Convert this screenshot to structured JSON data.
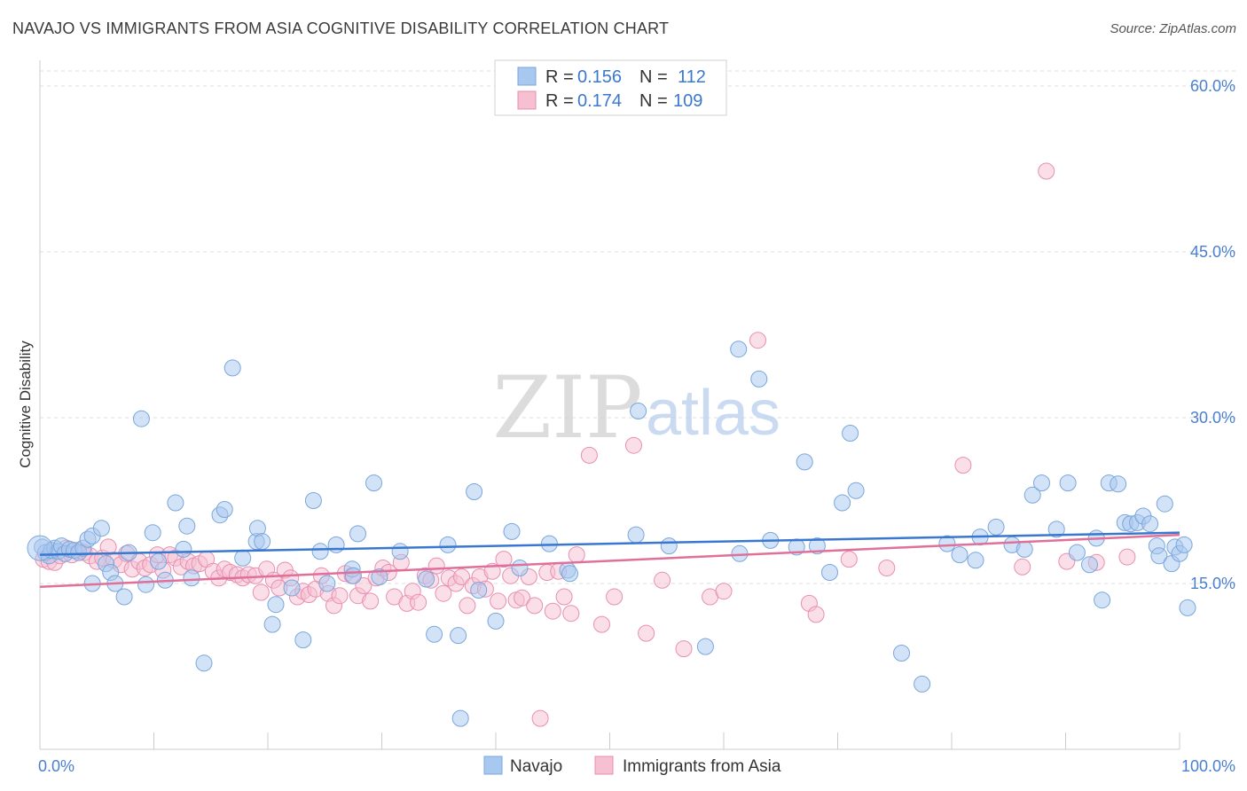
{
  "title": "NAVAJO VS IMMIGRANTS FROM ASIA COGNITIVE DISABILITY CORRELATION CHART",
  "source": "Source: ZipAtlas.com",
  "watermark": {
    "zip": "ZIP",
    "atlas": "atlas"
  },
  "colors": {
    "navajo_fill": "#a8c8f0",
    "navajo_stroke": "#7aa6dc",
    "navajo_line": "#3a78d0",
    "asia_fill": "#f6bfd2",
    "asia_stroke": "#e88fb0",
    "asia_line": "#e0709a",
    "axis_text": "#4a7fd0",
    "grid": "#dddddd"
  },
  "legend": {
    "rows": [
      {
        "r_label": "R =",
        "r_value": "0.156",
        "n_label": "N =",
        "n_value": "112"
      },
      {
        "r_label": "R =",
        "r_value": "0.174",
        "n_label": "N =",
        "n_value": "109"
      }
    ]
  },
  "bottom_legend": {
    "navajo": "Navajo",
    "asia": "Immigrants from Asia"
  },
  "chart_data": {
    "type": "scatter",
    "title": "NAVAJO VS IMMIGRANTS FROM ASIA COGNITIVE DISABILITY CORRELATION CHART",
    "xlabel": "",
    "ylabel": "Cognitive Disability",
    "xlim": [
      0,
      100
    ],
    "ylim": [
      0,
      60
    ],
    "x_tick_labels": [
      "0.0%",
      "100.0%"
    ],
    "y_ticks": [
      15,
      30,
      45,
      60
    ],
    "y_tick_labels": [
      "15.0%",
      "30.0%",
      "45.0%",
      "60.0%"
    ],
    "grid": "horizontal dashed",
    "legend_position": "top-center",
    "series": [
      {
        "name": "Navajo",
        "R": 0.156,
        "N": 112,
        "trend": {
          "x": [
            0,
            100
          ],
          "y": [
            17.6,
            19.6
          ]
        },
        "points": [
          [
            0.2,
            18.3
          ],
          [
            0.5,
            17.8
          ],
          [
            0.8,
            17.5
          ],
          [
            1.0,
            18.0
          ],
          [
            1.3,
            18.2
          ],
          [
            1.6,
            17.9
          ],
          [
            1.9,
            18.4
          ],
          [
            2.2,
            17.7
          ],
          [
            2.6,
            18.1
          ],
          [
            3.0,
            18.0
          ],
          [
            3.4,
            17.8
          ],
          [
            3.8,
            18.2
          ],
          [
            4.2,
            19.0
          ],
          [
            4.6,
            19.3
          ],
          [
            4.6,
            15.0
          ],
          [
            5.4,
            20.0
          ],
          [
            5.8,
            16.8
          ],
          [
            6.2,
            16.0
          ],
          [
            6.6,
            15.0
          ],
          [
            7.4,
            13.8
          ],
          [
            7.8,
            17.8
          ],
          [
            8.9,
            29.9
          ],
          [
            9.3,
            14.9
          ],
          [
            9.9,
            19.6
          ],
          [
            10.4,
            17.0
          ],
          [
            11.0,
            15.3
          ],
          [
            11.9,
            22.3
          ],
          [
            12.6,
            18.1
          ],
          [
            12.9,
            20.2
          ],
          [
            13.3,
            15.5
          ],
          [
            14.4,
            7.8
          ],
          [
            15.8,
            21.2
          ],
          [
            16.2,
            21.7
          ],
          [
            16.9,
            34.5
          ],
          [
            17.8,
            17.3
          ],
          [
            19.0,
            18.8
          ],
          [
            19.1,
            20.0
          ],
          [
            19.5,
            18.8
          ],
          [
            20.4,
            11.3
          ],
          [
            20.7,
            13.1
          ],
          [
            22.1,
            14.6
          ],
          [
            23.1,
            9.9
          ],
          [
            24.0,
            22.5
          ],
          [
            24.6,
            17.9
          ],
          [
            25.2,
            15.0
          ],
          [
            26.0,
            18.5
          ],
          [
            27.4,
            16.3
          ],
          [
            27.5,
            15.7
          ],
          [
            27.9,
            19.5
          ],
          [
            29.3,
            24.1
          ],
          [
            29.8,
            15.6
          ],
          [
            31.6,
            17.9
          ],
          [
            33.9,
            15.4
          ],
          [
            34.6,
            10.4
          ],
          [
            35.8,
            18.5
          ],
          [
            36.7,
            10.3
          ],
          [
            36.9,
            2.8
          ],
          [
            38.1,
            23.3
          ],
          [
            38.5,
            14.4
          ],
          [
            40.0,
            11.6
          ],
          [
            41.4,
            19.7
          ],
          [
            42.1,
            16.4
          ],
          [
            44.7,
            18.6
          ],
          [
            46.3,
            16.2
          ],
          [
            46.5,
            15.9
          ],
          [
            52.3,
            19.4
          ],
          [
            52.5,
            30.6
          ],
          [
            55.2,
            18.4
          ],
          [
            58.4,
            9.3
          ],
          [
            61.3,
            36.2
          ],
          [
            61.4,
            17.7
          ],
          [
            63.1,
            33.5
          ],
          [
            64.1,
            18.9
          ],
          [
            66.4,
            18.3
          ],
          [
            67.1,
            26.0
          ],
          [
            68.2,
            18.4
          ],
          [
            69.3,
            16.0
          ],
          [
            70.4,
            22.3
          ],
          [
            71.1,
            28.6
          ],
          [
            71.6,
            23.4
          ],
          [
            75.6,
            8.7
          ],
          [
            77.4,
            5.9
          ],
          [
            79.6,
            18.6
          ],
          [
            80.7,
            17.6
          ],
          [
            82.1,
            17.1
          ],
          [
            82.5,
            19.2
          ],
          [
            83.9,
            20.1
          ],
          [
            85.3,
            18.5
          ],
          [
            86.4,
            18.1
          ],
          [
            87.1,
            23.0
          ],
          [
            87.9,
            24.1
          ],
          [
            89.2,
            19.9
          ],
          [
            90.2,
            24.1
          ],
          [
            91.0,
            17.8
          ],
          [
            92.1,
            16.7
          ],
          [
            92.7,
            19.1
          ],
          [
            93.2,
            13.5
          ],
          [
            93.8,
            24.1
          ],
          [
            94.6,
            24.0
          ],
          [
            95.2,
            20.5
          ],
          [
            95.7,
            20.4
          ],
          [
            96.3,
            20.5
          ],
          [
            96.8,
            21.1
          ],
          [
            97.4,
            20.4
          ],
          [
            98.0,
            18.4
          ],
          [
            98.2,
            17.5
          ],
          [
            98.7,
            22.2
          ],
          [
            99.3,
            16.8
          ],
          [
            99.6,
            18.3
          ],
          [
            100.0,
            17.7
          ],
          [
            100.4,
            18.5
          ],
          [
            100.7,
            12.8
          ]
        ]
      },
      {
        "name": "Immigrants from Asia",
        "R": 0.174,
        "N": 109,
        "trend": {
          "x": [
            0,
            100
          ],
          "y": [
            14.7,
            19.4
          ]
        },
        "points": [
          [
            0.3,
            17.2
          ],
          [
            0.8,
            17.0
          ],
          [
            1.3,
            16.9
          ],
          [
            1.8,
            17.5
          ],
          [
            2.3,
            18.2
          ],
          [
            2.8,
            17.6
          ],
          [
            3.4,
            18.0
          ],
          [
            3.9,
            17.8
          ],
          [
            4.4,
            17.5
          ],
          [
            5.0,
            17.0
          ],
          [
            5.5,
            17.3
          ],
          [
            6.0,
            18.3
          ],
          [
            6.5,
            17.1
          ],
          [
            7.1,
            16.7
          ],
          [
            7.6,
            17.7
          ],
          [
            8.1,
            16.3
          ],
          [
            8.7,
            17.0
          ],
          [
            9.2,
            16.4
          ],
          [
            9.7,
            16.7
          ],
          [
            10.3,
            17.6
          ],
          [
            10.8,
            16.2
          ],
          [
            11.4,
            17.6
          ],
          [
            11.9,
            17.3
          ],
          [
            12.4,
            16.5
          ],
          [
            13.0,
            17.0
          ],
          [
            13.5,
            16.6
          ],
          [
            14.0,
            16.8
          ],
          [
            14.6,
            17.2
          ],
          [
            15.2,
            16.1
          ],
          [
            15.7,
            15.5
          ],
          [
            16.2,
            16.3
          ],
          [
            16.7,
            16.0
          ],
          [
            17.3,
            15.8
          ],
          [
            17.8,
            15.5
          ],
          [
            18.3,
            15.8
          ],
          [
            18.9,
            15.7
          ],
          [
            19.4,
            14.2
          ],
          [
            19.9,
            16.3
          ],
          [
            20.5,
            15.3
          ],
          [
            21.0,
            14.6
          ],
          [
            21.5,
            16.2
          ],
          [
            22.0,
            15.5
          ],
          [
            22.6,
            13.8
          ],
          [
            23.1,
            14.3
          ],
          [
            23.6,
            14.0
          ],
          [
            24.2,
            14.5
          ],
          [
            24.7,
            15.7
          ],
          [
            25.3,
            14.1
          ],
          [
            25.8,
            13.0
          ],
          [
            26.3,
            13.9
          ],
          [
            26.8,
            15.9
          ],
          [
            27.4,
            15.7
          ],
          [
            27.9,
            13.9
          ],
          [
            28.4,
            14.8
          ],
          [
            29.0,
            13.4
          ],
          [
            29.5,
            15.5
          ],
          [
            30.1,
            16.4
          ],
          [
            30.6,
            16.0
          ],
          [
            31.1,
            13.8
          ],
          [
            31.7,
            16.9
          ],
          [
            32.2,
            13.2
          ],
          [
            32.7,
            14.3
          ],
          [
            33.2,
            13.3
          ],
          [
            33.8,
            15.7
          ],
          [
            34.3,
            15.3
          ],
          [
            34.8,
            16.6
          ],
          [
            35.4,
            14.1
          ],
          [
            35.9,
            15.5
          ],
          [
            36.5,
            15.0
          ],
          [
            37.0,
            15.6
          ],
          [
            37.5,
            13.0
          ],
          [
            38.0,
            14.8
          ],
          [
            38.6,
            15.6
          ],
          [
            39.1,
            14.5
          ],
          [
            39.7,
            16.1
          ],
          [
            40.2,
            13.4
          ],
          [
            40.7,
            17.2
          ],
          [
            41.3,
            15.7
          ],
          [
            41.8,
            13.5
          ],
          [
            42.3,
            13.7
          ],
          [
            42.9,
            15.6
          ],
          [
            43.4,
            13.0
          ],
          [
            43.9,
            2.8
          ],
          [
            44.5,
            16.0
          ],
          [
            45.0,
            12.5
          ],
          [
            45.5,
            16.1
          ],
          [
            46.0,
            13.8
          ],
          [
            46.6,
            12.3
          ],
          [
            47.1,
            17.6
          ],
          [
            48.2,
            26.6
          ],
          [
            49.3,
            11.3
          ],
          [
            50.4,
            13.8
          ],
          [
            52.1,
            27.5
          ],
          [
            53.2,
            10.5
          ],
          [
            54.6,
            15.3
          ],
          [
            56.5,
            9.1
          ],
          [
            58.8,
            13.8
          ],
          [
            60.0,
            14.3
          ],
          [
            63.0,
            37.0
          ],
          [
            67.5,
            13.2
          ],
          [
            68.1,
            12.2
          ],
          [
            71.0,
            17.2
          ],
          [
            74.3,
            16.4
          ],
          [
            81.0,
            25.7
          ],
          [
            86.2,
            16.5
          ],
          [
            88.3,
            52.3
          ],
          [
            90.1,
            17.0
          ],
          [
            92.7,
            16.9
          ],
          [
            95.4,
            17.4
          ]
        ]
      }
    ]
  }
}
